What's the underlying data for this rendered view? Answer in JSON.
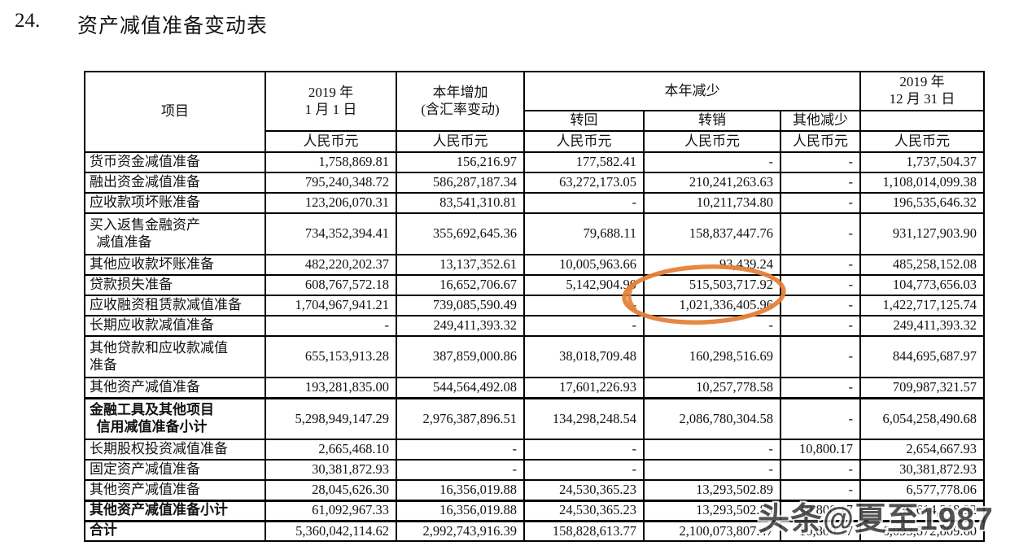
{
  "page": {
    "section_number": "24.",
    "title": "资产减值准备变动表"
  },
  "table": {
    "header": {
      "item": "项目",
      "jan1": "2019 年\n1 月 1 日",
      "increase": "本年增加\n(含汇率变动)",
      "decrease_group": "本年减少",
      "reversal": "转回",
      "writeoff": "转销",
      "other_decrease": "其他减少",
      "dec31": "2019 年\n12 月 31 日",
      "unit": "人民币元"
    },
    "rows": [
      {
        "label": "货币资金减值准备",
        "jan1": "1,758,869.81",
        "increase": "156,216.97",
        "reversal": "177,582.41",
        "writeoff": "-",
        "other_decrease": "-",
        "dec31": "1,737,504.37",
        "emphasis": false
      },
      {
        "label": "融出资金减值准备",
        "jan1": "795,240,348.72",
        "increase": "586,287,187.34",
        "reversal": "63,272,173.05",
        "writeoff": "210,241,263.63",
        "other_decrease": "-",
        "dec31": "1,108,014,099.38",
        "emphasis": false
      },
      {
        "label": "应收款项坏账准备",
        "jan1": "123,206,070.31",
        "increase": "83,541,310.81",
        "reversal": "-",
        "writeoff": "10,211,734.80",
        "other_decrease": "-",
        "dec31": "196,535,646.32",
        "emphasis": false
      },
      {
        "label": "买入返售金融资产\n  减值准备",
        "jan1": "734,352,394.41",
        "increase": "355,692,645.36",
        "reversal": "79,688.11",
        "writeoff": "158,837,447.76",
        "other_decrease": "-",
        "dec31": "931,127,903.90",
        "emphasis": false
      },
      {
        "label": "其他应收款坏账准备",
        "jan1": "482,220,202.37",
        "increase": "13,137,352.61",
        "reversal": "10,005,963.66",
        "writeoff": "93,439.24",
        "other_decrease": "-",
        "dec31": "485,258,152.08",
        "emphasis": false
      },
      {
        "label": "贷款损失准备",
        "jan1": "608,767,572.18",
        "increase": "16,652,706.67",
        "reversal": "5,142,904.90",
        "writeoff": "515,503,717.92",
        "other_decrease": "-",
        "dec31": "104,773,656.03",
        "emphasis": false
      },
      {
        "label": "应收融资租赁款减值准备",
        "jan1": "1,704,967,941.21",
        "increase": "739,085,590.49",
        "reversal": "-",
        "writeoff": "1,021,336,405.96",
        "other_decrease": "-",
        "dec31": "1,422,717,125.74",
        "emphasis": false
      },
      {
        "label": "长期应收款减值准备",
        "jan1": "-",
        "increase": "249,411,393.32",
        "reversal": "-",
        "writeoff": "-",
        "other_decrease": "-",
        "dec31": "249,411,393.32",
        "emphasis": false
      },
      {
        "label": "其他贷款和应收款减值\n准备",
        "jan1": "655,153,913.28",
        "increase": "387,859,000.86",
        "reversal": "38,018,709.48",
        "writeoff": "160,298,516.69",
        "other_decrease": "-",
        "dec31": "844,695,687.97",
        "emphasis": false
      },
      {
        "label": "其他资产减值准备",
        "jan1": "193,281,835.00",
        "increase": "544,564,492.08",
        "reversal": "17,601,226.93",
        "writeoff": "10,257,778.58",
        "other_decrease": "-",
        "dec31": "709,987,321.57",
        "emphasis": false
      },
      {
        "label": "金融工具及其他项目\n  信用减值准备小计",
        "jan1": "5,298,949,147.29",
        "increase": "2,976,387,896.51",
        "reversal": "134,298,248.54",
        "writeoff": "2,086,780,304.58",
        "other_decrease": "-",
        "dec31": "6,054,258,490.68",
        "emphasis": true
      },
      {
        "label": "长期股权投资减值准备",
        "jan1": "2,665,468.10",
        "increase": "-",
        "reversal": "-",
        "writeoff": "-",
        "other_decrease": "10,800.17",
        "dec31": "2,654,667.93",
        "emphasis": false
      },
      {
        "label": "固定资产减值准备",
        "jan1": "30,381,872.93",
        "increase": "-",
        "reversal": "-",
        "writeoff": "-",
        "other_decrease": "-",
        "dec31": "30,381,872.93",
        "emphasis": false
      },
      {
        "label": "其他资产减值准备",
        "jan1": "28,045,626.30",
        "increase": "16,356,019.88",
        "reversal": "24,530,365.23",
        "writeoff": "13,293,502.89",
        "other_decrease": "-",
        "dec31": "6,577,778.06",
        "emphasis": false
      },
      {
        "label": "其他资产减值准备小计",
        "jan1": "61,092,967.33",
        "increase": "16,356,019.88",
        "reversal": "24,530,365.23",
        "writeoff": "13,293,502.89",
        "other_decrease": "10,800.17",
        "dec31": "39,614,318.92",
        "emphasis": true
      },
      {
        "label": "合计",
        "jan1": "5,360,042,114.62",
        "increase": "2,992,743,916.39",
        "reversal": "158,828,613.77",
        "writeoff": "2,100,073,807.47",
        "other_decrease": "10,800.17",
        "dec31": "6,093,872,809.60",
        "emphasis": true
      }
    ]
  },
  "annotations": {
    "circle_color": "#e5823a",
    "circled_values": [
      "515,503,717.92",
      "1,021,336,405.96"
    ]
  },
  "watermark": {
    "text": "头条@夏至1987"
  }
}
